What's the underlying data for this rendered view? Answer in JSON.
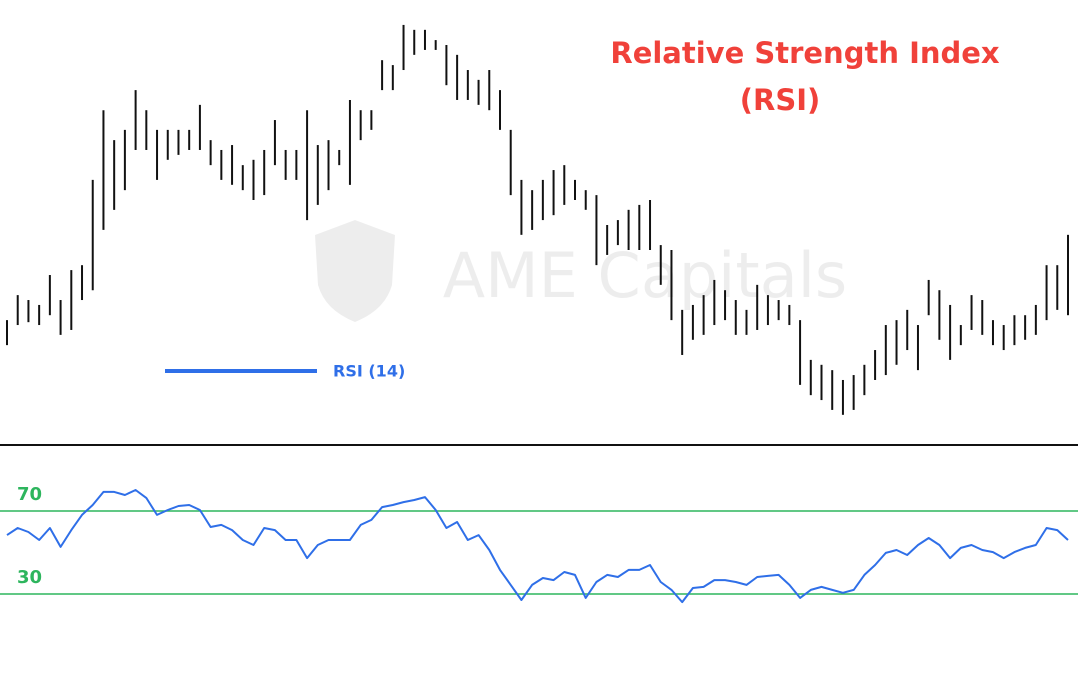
{
  "chart_data": [
    {
      "type": "range_bar",
      "title": "Relative Strength Index",
      "subtitle": "(RSI)",
      "watermark": "AME Capitals",
      "color": "#111111",
      "ylim": [
        0,
        100
      ],
      "high": [
        26.8,
        32.9,
        31.7,
        30.5,
        37.8,
        31.7,
        39.0,
        40.2,
        61,
        78,
        70.7,
        73.2,
        82.9,
        78,
        73.2,
        73.2,
        73.2,
        73.2,
        79.3,
        70.7,
        68.3,
        69.5,
        64.6,
        65.9,
        68.3,
        75.6,
        68.3,
        68.3,
        78,
        69.5,
        70.7,
        68.3,
        80.5,
        78,
        78,
        90.2,
        89,
        98.8,
        97.6,
        97.6,
        95.1,
        93.9,
        91.5,
        87.8,
        85.4,
        87.8,
        82.9,
        73.2,
        61,
        58.5,
        61,
        63.4,
        64.6,
        61,
        58.5,
        57.3,
        50,
        51.2,
        53.7,
        54.9,
        56.1,
        45.1,
        43.9,
        29.3,
        30.5,
        32.9,
        36.6,
        34.1,
        31.7,
        29.3,
        35.4,
        32.9,
        31.7,
        30.5,
        26.8,
        17.1,
        15.9,
        14.6,
        12.2,
        13.4,
        15.9,
        19.5,
        25.6,
        26.8,
        29.3,
        25.6,
        36.6,
        34.1,
        30.5,
        25.6,
        32.9,
        31.7,
        26.8,
        25.6,
        28,
        28,
        30.5,
        40.2,
        40.2,
        47.6
      ],
      "low": [
        20.7,
        25.6,
        26.3,
        25.6,
        28,
        23.2,
        24.4,
        31.7,
        34.1,
        48.8,
        53.7,
        58.5,
        68.3,
        68.3,
        61,
        65.9,
        67.1,
        68.3,
        68.3,
        64.6,
        61,
        59.8,
        58.5,
        56.1,
        57.3,
        64.6,
        61,
        61,
        51.2,
        54.9,
        58.5,
        64.6,
        59.8,
        70.7,
        73.2,
        82.9,
        82.9,
        87.8,
        91.5,
        92.7,
        92.7,
        84.1,
        80.5,
        80.5,
        79.3,
        78,
        73.2,
        57.3,
        47.6,
        48.8,
        51.2,
        52.4,
        54.9,
        56.1,
        53.7,
        40.2,
        42.7,
        45.1,
        43.9,
        43.9,
        43.9,
        35.4,
        26.8,
        18.3,
        22,
        23.2,
        25.6,
        26.8,
        23.2,
        23.2,
        24.4,
        25.6,
        26.8,
        25.6,
        11,
        8.5,
        7.3,
        4.9,
        3.7,
        4.9,
        8.5,
        12.2,
        13.4,
        15.9,
        19.5,
        14.6,
        28,
        22,
        17.1,
        20.7,
        24.4,
        23.2,
        20.7,
        19.5,
        20.7,
        22,
        23.2,
        26.8,
        29.3,
        28
      ]
    },
    {
      "type": "line",
      "ylim": [
        10,
        100
      ],
      "yticks": [
        30,
        70
      ],
      "grid": true,
      "grid_color": "#2db55d",
      "series": [
        {
          "name": "RSI (14)",
          "color": "#2f6fe8",
          "values": [
            58.4,
            61.8,
            59.9,
            56,
            61.8,
            52.7,
            60.8,
            68.1,
            72.9,
            79.2,
            79.2,
            77.7,
            80.1,
            76.3,
            68.1,
            70.5,
            72.4,
            72.9,
            70.5,
            62.3,
            63.3,
            60.8,
            56,
            53.6,
            61.8,
            60.8,
            56,
            56,
            47.3,
            53.6,
            56,
            56,
            56,
            63.3,
            65.7,
            71.9,
            72.9,
            74.3,
            75.3,
            76.7,
            70.5,
            61.8,
            64.7,
            56,
            58.4,
            51.2,
            41.6,
            34.4,
            27.1,
            34.4,
            37.7,
            36.7,
            40.6,
            39.2,
            28.1,
            35.8,
            39.2,
            38.2,
            41.6,
            41.6,
            44,
            35.8,
            32,
            26.1,
            32.9,
            33.4,
            36.7,
            36.7,
            35.8,
            34.4,
            38.2,
            38.7,
            39.2,
            34.4,
            28.1,
            32,
            33.4,
            32,
            30.6,
            32,
            39.2,
            44,
            49.8,
            51.2,
            48.8,
            53.6,
            57,
            53.6,
            47.3,
            52.2,
            53.6,
            51.2,
            50.2,
            47.3,
            50.2,
            52.2,
            53.6,
            61.8,
            60.8,
            56
          ]
        }
      ]
    }
  ]
}
